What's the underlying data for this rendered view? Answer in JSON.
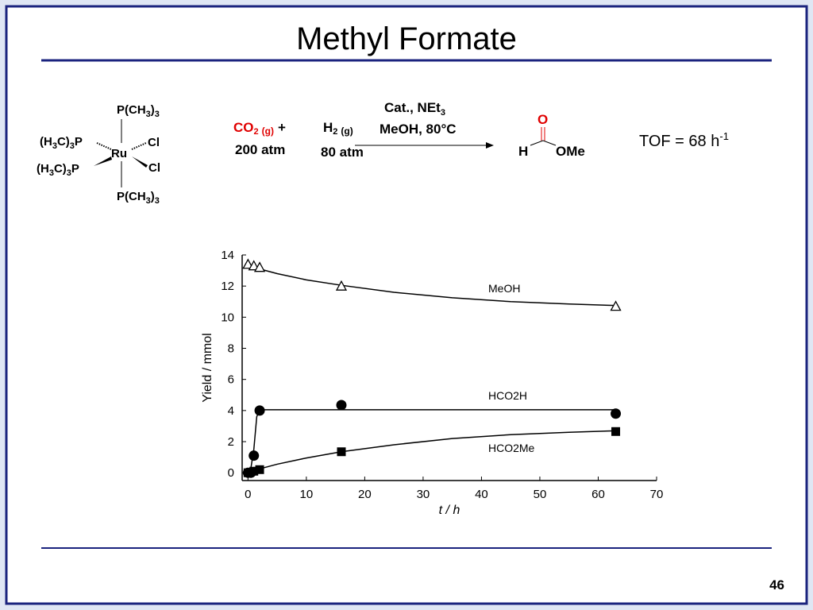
{
  "slide": {
    "title": "Methyl Formate",
    "page_number": "46",
    "catalyst": {
      "top": [
        "P(CH",
        "3",
        ")",
        "3"
      ],
      "left_upper": [
        "(H",
        "3",
        "C)",
        "3",
        "P"
      ],
      "left_lower": [
        "(H",
        "3",
        "C)",
        "3",
        "P"
      ],
      "metal": "Ru",
      "right_upper": "Cl",
      "right_lower": "Cl",
      "bottom": [
        "P(CH",
        "3",
        ")",
        "3"
      ]
    },
    "reaction": {
      "reactant1": {
        "formula": [
          "CO",
          "2"
        ],
        "state": "(g)",
        "plus": "+",
        "pressure": "200 atm"
      },
      "reactant2": {
        "formula": [
          "H",
          "2"
        ],
        "state": "(g)",
        "pressure": "80 atm"
      },
      "conditions": {
        "line1": [
          "Cat., NEt",
          "3"
        ],
        "line2": "MeOH, 80°C"
      },
      "product": {
        "oxygen": "O",
        "hydrogen": "H",
        "methoxy": "OMe"
      },
      "tof": {
        "text": "TOF = 68 h",
        "superscript": "-1"
      }
    }
  },
  "chart_data": {
    "type": "scatter",
    "x_label": "t / h",
    "y_label": "Yield / mmol",
    "xlim": [
      -1,
      70
    ],
    "ylim": [
      -0.5,
      14
    ],
    "xticks": [
      0,
      10,
      20,
      30,
      40,
      50,
      60,
      70
    ],
    "yticks": [
      0,
      2,
      4,
      6,
      8,
      10,
      12,
      14
    ],
    "series": [
      {
        "name": "MeOH",
        "color": "#000000",
        "marker": "triangle",
        "x": [
          0,
          1,
          2,
          16,
          63
        ],
        "values": [
          13.4,
          13.3,
          13.2,
          12.0,
          10.7
        ],
        "fit": {
          "x": [
            0,
            2,
            5,
            10,
            16,
            25,
            35,
            45,
            55,
            63
          ],
          "y": [
            13.4,
            13.1,
            12.8,
            12.4,
            12.05,
            11.6,
            11.25,
            11.0,
            10.85,
            10.75
          ]
        }
      },
      {
        "name": "HCO2H",
        "color": "#000000",
        "marker": "circle",
        "x": [
          0,
          0.5,
          1,
          2,
          16,
          63
        ],
        "values": [
          0,
          0,
          1.1,
          4.0,
          4.35,
          3.8
        ],
        "fit": {
          "x": [
            0,
            0.5,
            1,
            1.5,
            2,
            10,
            30,
            50,
            63
          ],
          "y": [
            0,
            0.3,
            1.5,
            3.6,
            4.05,
            4.05,
            4.05,
            4.05,
            4.05
          ]
        }
      },
      {
        "name": "HCO2Me",
        "color": "#000000",
        "marker": "square",
        "x": [
          0,
          1,
          2,
          16,
          63
        ],
        "values": [
          0,
          0.1,
          0.2,
          1.35,
          2.65
        ],
        "fit": {
          "x": [
            0,
            1,
            2,
            5,
            10,
            16,
            25,
            35,
            45,
            55,
            63
          ],
          "y": [
            0,
            0.1,
            0.25,
            0.55,
            0.95,
            1.35,
            1.8,
            2.2,
            2.45,
            2.6,
            2.7
          ]
        }
      }
    ]
  }
}
